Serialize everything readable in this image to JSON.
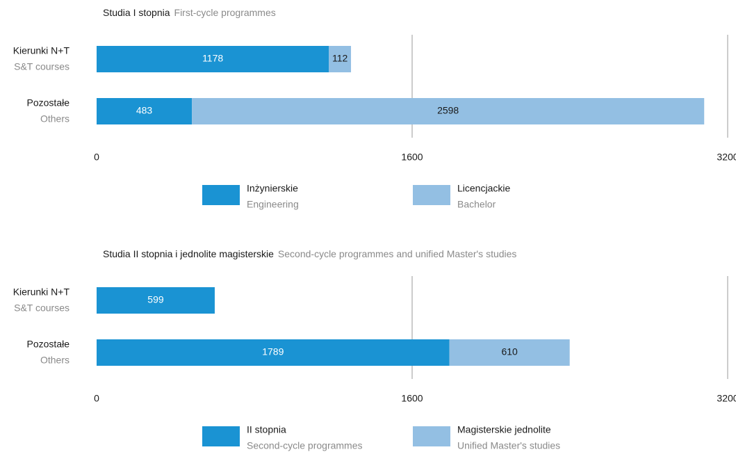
{
  "chart_data": [
    {
      "type": "bar",
      "orientation": "horizontal",
      "stacked": true,
      "title": "Studia I stopnia",
      "subtitle": "First-cycle programmes",
      "categories": [
        "Kierunki N+T",
        "Pozostałe"
      ],
      "category_subtitles": [
        "S&T courses",
        "Others"
      ],
      "series": [
        {
          "name": "Inżynierskie",
          "subtitle": "Engineering",
          "color": "#1a93d3",
          "values": [
            1178,
            483
          ]
        },
        {
          "name": "Licencjackie",
          "subtitle": "Bachelor",
          "color": "#93bfe3",
          "values": [
            112,
            2598
          ]
        }
      ],
      "xlim": [
        0,
        3200
      ],
      "xticks": [
        0,
        1600,
        3200
      ],
      "grid": true,
      "legend": "bottom"
    },
    {
      "type": "bar",
      "orientation": "horizontal",
      "stacked": true,
      "title": "Studia II stopnia i jednolite magisterskie",
      "subtitle": "Second-cycle programmes and unified Master's studies",
      "categories": [
        "Kierunki N+T",
        "Pozostałe"
      ],
      "category_subtitles": [
        "S&T courses",
        "Others"
      ],
      "series": [
        {
          "name": "II stopnia",
          "subtitle": "Second-cycle programmes",
          "color": "#1a93d3",
          "values": [
            599,
            1789
          ]
        },
        {
          "name": "Magisterskie jednolite",
          "subtitle": "Unified Master's studies",
          "color": "#93bfe3",
          "values": [
            null,
            610
          ]
        }
      ],
      "xlim": [
        0,
        3200
      ],
      "xticks": [
        0,
        1600,
        3200
      ],
      "grid": true,
      "legend": "bottom"
    }
  ]
}
